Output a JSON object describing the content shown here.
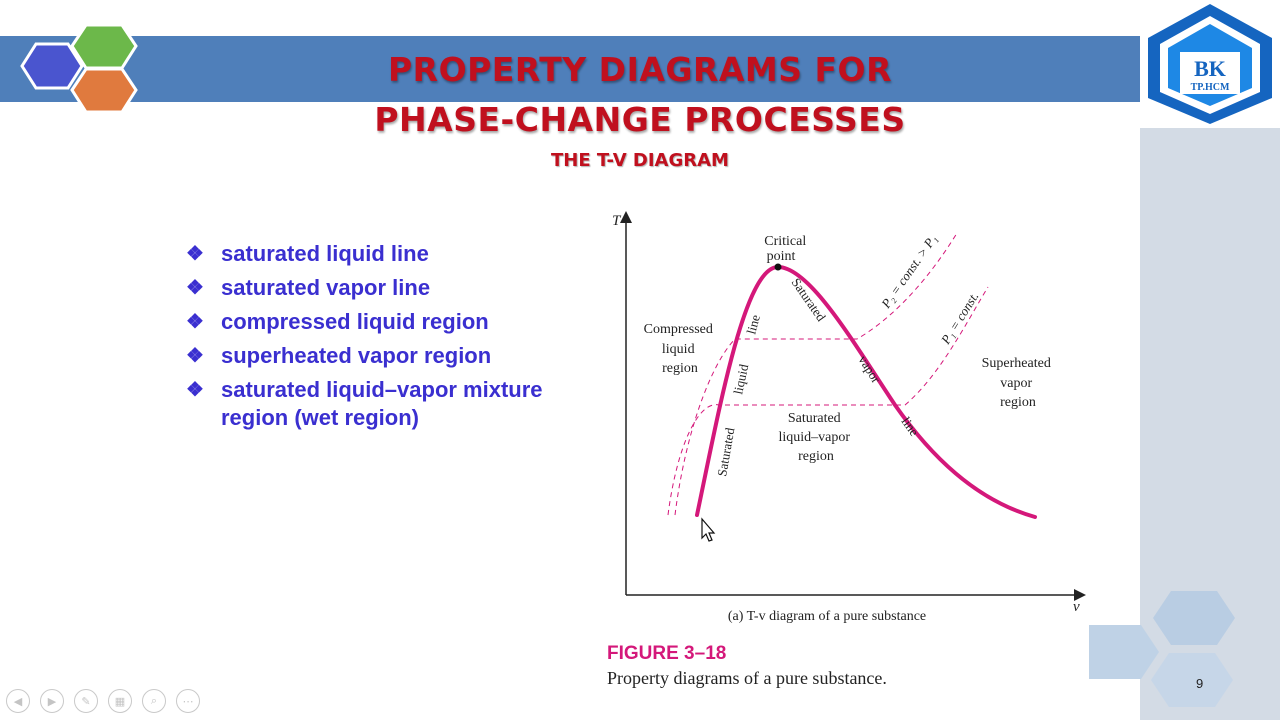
{
  "slide": {
    "title_line1": "PROPERTY DIAGRAMS FOR",
    "title_line2": "PHASE-CHANGE PROCESSES",
    "subtitle": "THE T-V DIAGRAM",
    "page_number": "9"
  },
  "logo": {
    "text": "BK",
    "subtext": "TP.HCM",
    "color": "#1565c0"
  },
  "bullets": [
    "saturated liquid line",
    "saturated vapor line",
    "compressed liquid region",
    "superheated vapor region",
    "saturated liquid–vapor mixture region (wet region)"
  ],
  "figure": {
    "axis_t": "T",
    "axis_v": "v",
    "critical_point": [
      "Critical",
      "point"
    ],
    "compressed": [
      "Compressed",
      "liquid",
      "region"
    ],
    "superheated": [
      "Superheated",
      "vapor",
      "region"
    ],
    "mixture": [
      "Saturated",
      "liquid–vapor",
      "region"
    ],
    "sat_liquid_1": "Saturated",
    "sat_liquid_2": "liquid",
    "sat_liquid_3": "line",
    "sat_vapor_1": "Saturated",
    "sat_vapor_2": "vapor",
    "sat_vapor_3": "line",
    "p2_label": "P₂ = const. > P₁",
    "p1_label": "P₁ = const.",
    "caption_a": "(a) T-v diagram of a pure substance",
    "label": "FIGURE 3–18",
    "caption": "Property diagrams of a pure substance.",
    "curve_color": "#d4187a"
  },
  "colors": {
    "banner": "#4f7fba",
    "title": "#c0101e",
    "bullet_text": "#3a2fd0",
    "panel": "#d3dbe5"
  },
  "controls": [
    "prev-icon",
    "next-icon",
    "pen-icon",
    "slides-icon",
    "zoom-icon",
    "more-icon"
  ]
}
